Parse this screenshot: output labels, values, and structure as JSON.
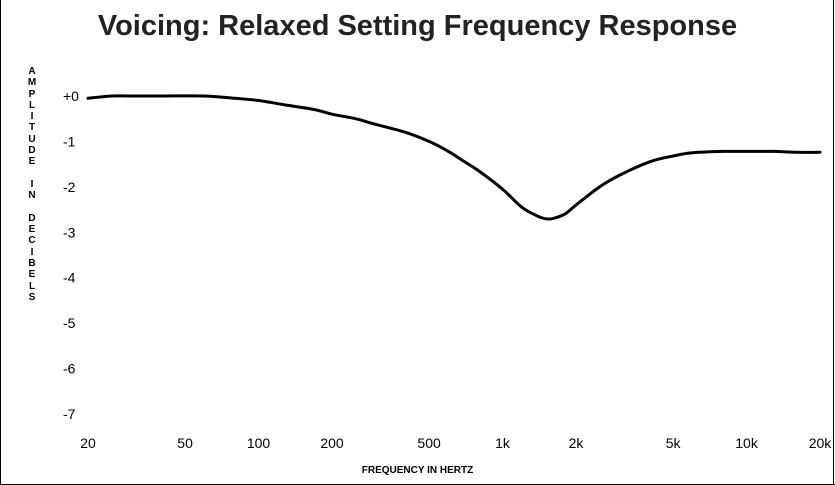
{
  "chart_data": {
    "type": "line",
    "title": "Voicing: Relaxed Setting Frequency Response",
    "ylabel": "AMPLITUDE IN DECIBELS",
    "xlabel": "FREQUENCY IN HERTZ",
    "x_scale": "log",
    "xlim": [
      20,
      20000
    ],
    "ylim": [
      -7,
      0
    ],
    "x_ticks": [
      {
        "value": 20,
        "label": "20"
      },
      {
        "value": 50,
        "label": "50"
      },
      {
        "value": 100,
        "label": "100"
      },
      {
        "value": 200,
        "label": "200"
      },
      {
        "value": 500,
        "label": "500"
      },
      {
        "value": 1000,
        "label": "1k"
      },
      {
        "value": 2000,
        "label": "2k"
      },
      {
        "value": 5000,
        "label": "5k"
      },
      {
        "value": 10000,
        "label": "10k"
      },
      {
        "value": 20000,
        "label": "20k"
      }
    ],
    "y_ticks": [
      {
        "value": 0,
        "label": "+0"
      },
      {
        "value": -1,
        "label": "-1"
      },
      {
        "value": -2,
        "label": "-2"
      },
      {
        "value": -3,
        "label": "-3"
      },
      {
        "value": -4,
        "label": "-4"
      },
      {
        "value": -5,
        "label": "-5"
      },
      {
        "value": -6,
        "label": "-6"
      },
      {
        "value": -7,
        "label": "-7"
      }
    ],
    "grid": false,
    "legend": false,
    "line_color": "#000000",
    "series": [
      {
        "x": [
          20,
          25,
          30,
          40,
          60,
          80,
          100,
          130,
          170,
          200,
          250,
          300,
          400,
          500,
          600,
          700,
          800,
          1000,
          1200,
          1400,
          1500,
          1600,
          1800,
          2000,
          2500,
          3000,
          4000,
          5000,
          6000,
          8000,
          10000,
          13000,
          16000,
          20000
        ],
        "y": [
          -0.05,
          0.0,
          0.0,
          0.0,
          0.0,
          -0.05,
          -0.1,
          -0.2,
          -0.3,
          -0.4,
          -0.5,
          -0.62,
          -0.8,
          -1.0,
          -1.22,
          -1.45,
          -1.65,
          -2.05,
          -2.45,
          -2.65,
          -2.7,
          -2.7,
          -2.6,
          -2.4,
          -2.0,
          -1.75,
          -1.45,
          -1.32,
          -1.25,
          -1.22,
          -1.22,
          -1.22,
          -1.24,
          -1.24
        ]
      }
    ]
  }
}
